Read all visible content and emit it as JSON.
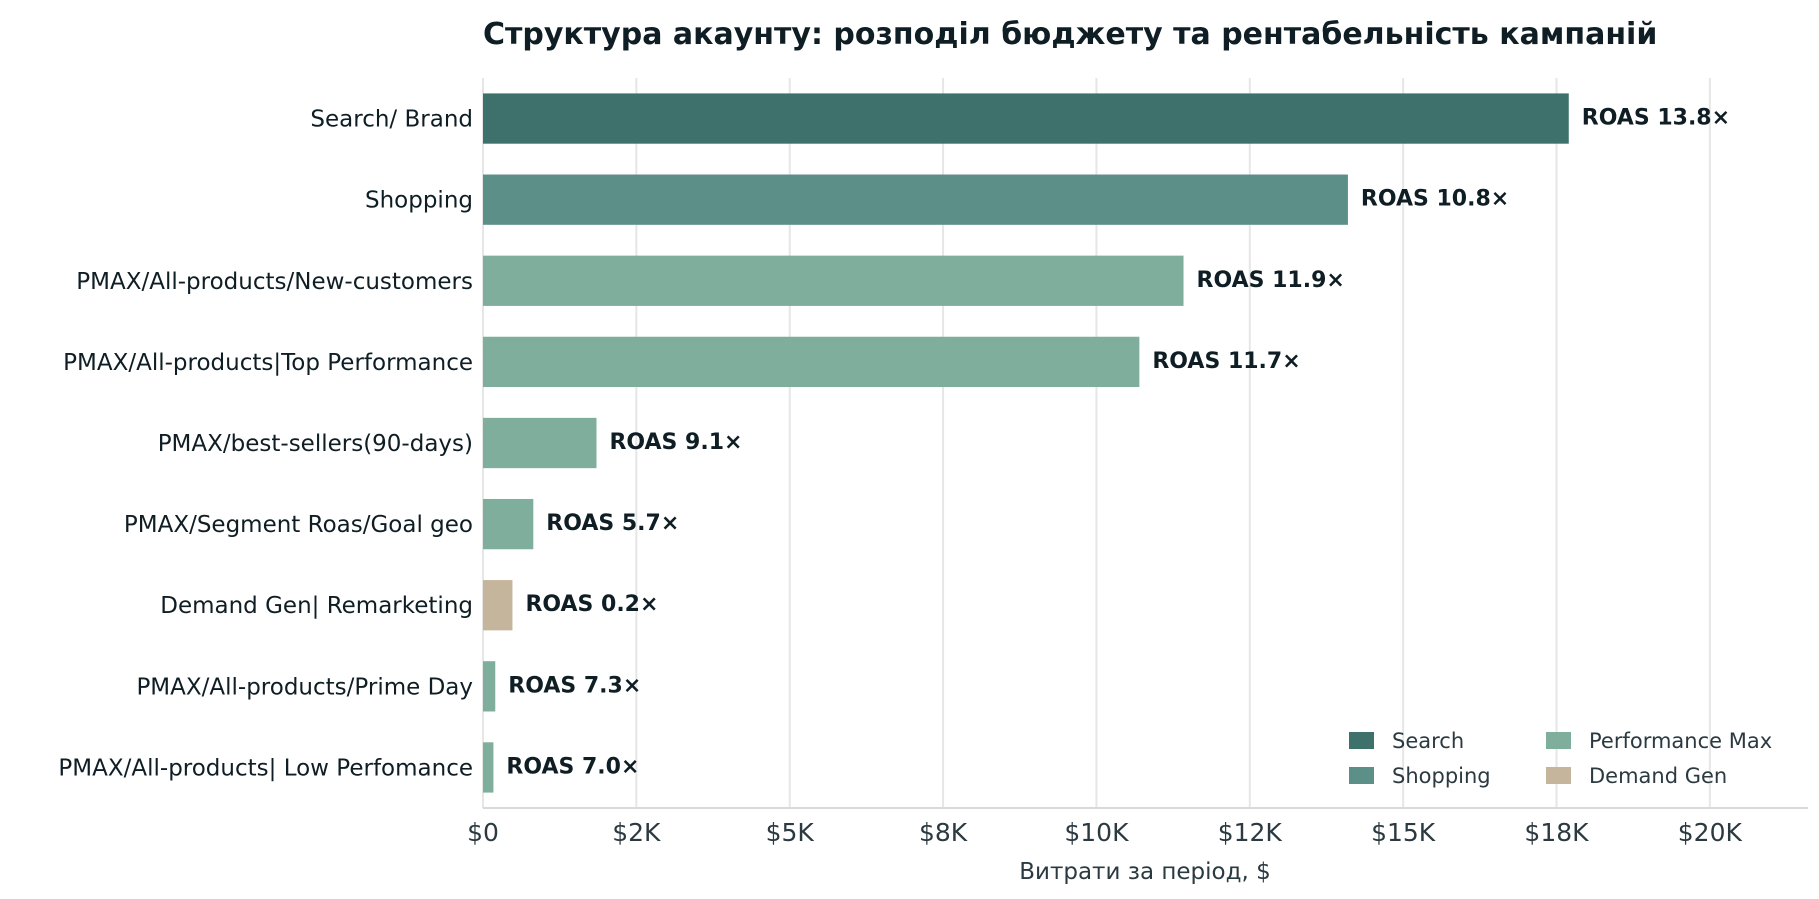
{
  "chart_data": {
    "type": "bar",
    "orientation": "horizontal",
    "title": "Структура акаунту: розподіл бюджету та рентабельність кампаній",
    "xlabel": "Витрати за період, $",
    "ylabel": "",
    "xlim": [
      0,
      21600
    ],
    "x_ticks": [
      0,
      2500,
      5000,
      7500,
      10000,
      12500,
      15000,
      17500,
      20000
    ],
    "x_tick_labels": [
      "$0",
      "$2K",
      "$5K",
      "$8K",
      "$10K",
      "$12K",
      "$15K",
      "$18K",
      "$20K"
    ],
    "grid": "vertical",
    "legend_position": "bottom-right",
    "legend": [
      {
        "name": "Search",
        "color": "#3e716b"
      },
      {
        "name": "Performance Max",
        "color": "#80ae9c"
      },
      {
        "name": "Shopping",
        "color": "#5b8f88"
      },
      {
        "name": "Demand Gen",
        "color": "#c4b59c"
      }
    ],
    "categories": [
      "Search/ Brand",
      "Shopping",
      "PMAX/All-products/New-customers",
      "PMAX/All-products|Top Performance",
      "PMAX/best-sellers(90-days)",
      "PMAX/Segment Roas/Goal geo",
      "Demand Gen| Remarketing",
      "PMAX/All-products/Prime Day",
      "PMAX/All-products| Low Perfomance"
    ],
    "values": [
      17700,
      14100,
      11420,
      10700,
      1850,
      820,
      480,
      200,
      170
    ],
    "bar_types": [
      "Search",
      "Shopping",
      "Performance Max",
      "Performance Max",
      "Performance Max",
      "Performance Max",
      "Demand Gen",
      "Performance Max",
      "Performance Max"
    ],
    "data_labels": [
      "ROAS 13.8×",
      "ROAS 10.8×",
      "ROAS 11.9×",
      "ROAS 11.7×",
      "ROAS 9.1×",
      "ROAS 5.7×",
      "ROAS 0.2×",
      "ROAS 7.3×",
      "ROAS 7.0×"
    ]
  }
}
